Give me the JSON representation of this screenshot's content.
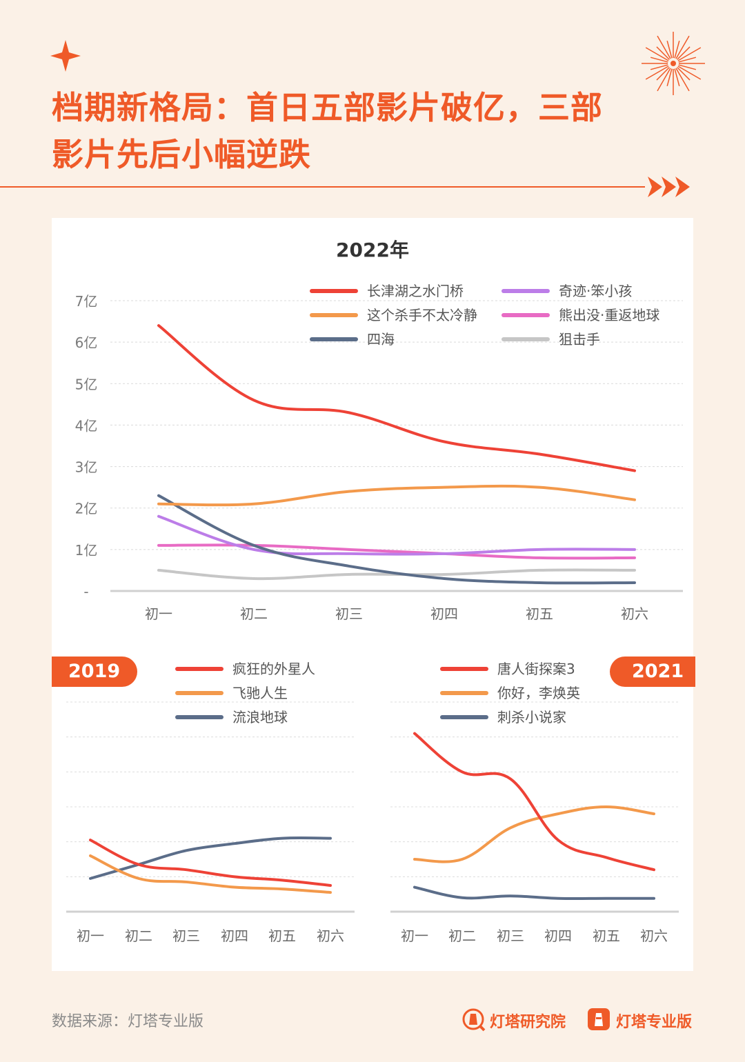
{
  "title": {
    "line1": "档期新格局：首日五部影片破亿，三部",
    "line2": "影片先后小幅逆跌"
  },
  "footer": {
    "source": "数据来源：灯塔专业版",
    "brand1": "灯塔研究院",
    "brand2": "灯塔专业版"
  },
  "colors": {
    "accent": "#ef5a28",
    "red": "#ee4236",
    "orange": "#f3994b",
    "navy": "#5b6d89",
    "purple": "#bc7de8",
    "pink": "#e86bc4",
    "gray": "#c6c6c6"
  },
  "chart_data": [
    {
      "type": "line",
      "title": "2022年",
      "categories": [
        "初一",
        "初二",
        "初三",
        "初四",
        "初五",
        "初六"
      ],
      "yticks": [
        "-",
        "1亿",
        "2亿",
        "3亿",
        "4亿",
        "5亿",
        "6亿",
        "7亿"
      ],
      "ylim": [
        0,
        7
      ],
      "ylabel": "亿",
      "series": [
        {
          "name": "长津湖之水门桥",
          "color": "red",
          "values": [
            6.4,
            4.6,
            4.3,
            3.6,
            3.3,
            2.9
          ]
        },
        {
          "name": "这个杀手不太冷静",
          "color": "orange",
          "values": [
            2.1,
            2.1,
            2.4,
            2.5,
            2.5,
            2.2
          ]
        },
        {
          "name": "四海",
          "color": "navy",
          "values": [
            2.3,
            1.1,
            0.6,
            0.3,
            0.2,
            0.2
          ]
        },
        {
          "name": "奇迹·笨小孩",
          "color": "purple",
          "values": [
            1.8,
            1.0,
            0.9,
            0.9,
            1.0,
            1.0
          ]
        },
        {
          "name": "熊出没·重返地球",
          "color": "pink",
          "values": [
            1.1,
            1.1,
            1.0,
            0.9,
            0.8,
            0.8
          ]
        },
        {
          "name": "狙击手",
          "color": "gray",
          "values": [
            0.5,
            0.3,
            0.4,
            0.4,
            0.5,
            0.5
          ]
        }
      ]
    },
    {
      "type": "line",
      "title": "2019",
      "categories": [
        "初一",
        "初二",
        "初三",
        "初四",
        "初五",
        "初六"
      ],
      "ylim": [
        0,
        6
      ],
      "series": [
        {
          "name": "疯狂的外星人",
          "color": "red",
          "values": [
            2.05,
            1.35,
            1.2,
            1.0,
            0.9,
            0.75
          ]
        },
        {
          "name": "飞驰人生",
          "color": "orange",
          "values": [
            1.6,
            0.95,
            0.85,
            0.7,
            0.65,
            0.55
          ]
        },
        {
          "name": "流浪地球",
          "color": "navy",
          "values": [
            0.95,
            1.35,
            1.75,
            1.95,
            2.1,
            2.1
          ]
        }
      ]
    },
    {
      "type": "line",
      "title": "2021",
      "categories": [
        "初一",
        "初二",
        "初三",
        "初四",
        "初五",
        "初六"
      ],
      "ylim": [
        0,
        6
      ],
      "series": [
        {
          "name": "唐人街探案3",
          "color": "red",
          "values": [
            5.1,
            4.0,
            3.8,
            2.05,
            1.55,
            1.2
          ]
        },
        {
          "name": "你好，李焕英",
          "color": "orange",
          "values": [
            1.5,
            1.5,
            2.4,
            2.8,
            3.0,
            2.8
          ]
        },
        {
          "name": "刺杀小说家",
          "color": "navy",
          "values": [
            0.7,
            0.4,
            0.45,
            0.38,
            0.38,
            0.38
          ]
        }
      ]
    }
  ]
}
